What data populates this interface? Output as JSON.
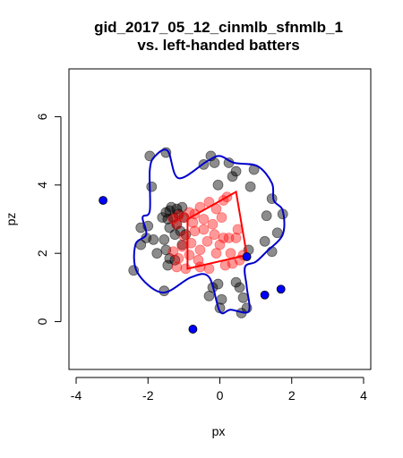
{
  "chart_data": {
    "type": "scatter",
    "title": "gid_2017_05_12_cinmlb_sfnmlb_1",
    "subtitle": "vs. left-handed batters",
    "xlabel": "px",
    "ylabel": "pz",
    "xlim": [
      -4.2,
      4.2
    ],
    "ylim": [
      -1.4,
      7.4
    ],
    "x_ticks": [
      -4,
      -2,
      0,
      2,
      4
    ],
    "y_ticks": [
      0,
      2,
      4,
      6
    ],
    "grid": false,
    "legend": "none",
    "colors": {
      "black": "#000000",
      "red": "#ff0000",
      "blue": "#0000ff",
      "outline": "#0000cc"
    },
    "points_black": [
      [
        -1.95,
        4.85
      ],
      [
        -1.5,
        4.95
      ],
      [
        -1.9,
        3.95
      ],
      [
        -2.2,
        2.75
      ],
      [
        -2.0,
        2.8
      ],
      [
        -2.05,
        2.45
      ],
      [
        -2.2,
        2.25
      ],
      [
        -1.85,
        2.4
      ],
      [
        -1.75,
        2.0
      ],
      [
        -1.55,
        2.4
      ],
      [
        -1.5,
        2.1
      ],
      [
        -1.45,
        1.65
      ],
      [
        -1.4,
        1.85
      ],
      [
        -1.25,
        1.8
      ],
      [
        -1.6,
        3.05
      ],
      [
        -1.45,
        3.0
      ],
      [
        -1.5,
        3.2
      ],
      [
        -1.4,
        3.25
      ],
      [
        -1.35,
        3.35
      ],
      [
        -1.2,
        3.3
      ],
      [
        -1.15,
        3.15
      ],
      [
        -1.05,
        3.35
      ],
      [
        -1.3,
        3.05
      ],
      [
        -1.2,
        2.85
      ],
      [
        -1.0,
        3.05
      ],
      [
        -1.1,
        2.65
      ],
      [
        -1.05,
        2.25
      ],
      [
        -1.25,
        2.55
      ],
      [
        -1.4,
        2.75
      ],
      [
        -0.95,
        2.55
      ],
      [
        -2.4,
        1.5
      ],
      [
        -1.55,
        0.9
      ],
      [
        -0.45,
        4.6
      ],
      [
        -0.25,
        4.85
      ],
      [
        -0.15,
        4.65
      ],
      [
        0.25,
        4.65
      ],
      [
        0.45,
        4.4
      ],
      [
        0.35,
        4.25
      ],
      [
        0.95,
        4.45
      ],
      [
        0.85,
        3.95
      ],
      [
        1.45,
        3.6
      ],
      [
        1.3,
        3.1
      ],
      [
        1.75,
        3.15
      ],
      [
        1.6,
        2.6
      ],
      [
        1.25,
        2.35
      ],
      [
        1.45,
        2.05
      ],
      [
        0.8,
        2.1
      ],
      [
        -0.05,
        4.0
      ],
      [
        -0.3,
        0.75
      ],
      [
        -0.2,
        1.0
      ],
      [
        -0.05,
        1.1
      ],
      [
        0.05,
        0.65
      ],
      [
        0.0,
        0.4
      ],
      [
        0.45,
        1.15
      ],
      [
        0.55,
        1.0
      ],
      [
        0.65,
        0.7
      ],
      [
        0.75,
        0.4
      ],
      [
        0.6,
        0.25
      ]
    ],
    "points_red": [
      [
        -1.3,
        3.0
      ],
      [
        -1.15,
        3.1
      ],
      [
        -1.0,
        3.05
      ],
      [
        -0.85,
        3.2
      ],
      [
        -0.55,
        3.35
      ],
      [
        -0.3,
        3.5
      ],
      [
        -0.1,
        3.3
      ],
      [
        0.1,
        3.55
      ],
      [
        0.2,
        3.65
      ],
      [
        -1.2,
        2.85
      ],
      [
        -0.75,
        2.9
      ],
      [
        -0.45,
        3.0
      ],
      [
        -0.2,
        2.85
      ],
      [
        0.05,
        3.05
      ],
      [
        -1.0,
        2.5
      ],
      [
        -0.7,
        2.65
      ],
      [
        -0.45,
        2.7
      ],
      [
        -0.15,
        2.55
      ],
      [
        0.25,
        2.45
      ],
      [
        0.45,
        2.45
      ],
      [
        0.5,
        2.7
      ],
      [
        -1.05,
        2.2
      ],
      [
        -0.8,
        2.3
      ],
      [
        -0.55,
        2.1
      ],
      [
        -0.35,
        2.35
      ],
      [
        0.0,
        2.25
      ],
      [
        0.3,
        2.0
      ],
      [
        -1.15,
        1.85
      ],
      [
        -0.85,
        1.95
      ],
      [
        -0.6,
        1.8
      ],
      [
        -0.3,
        1.55
      ],
      [
        0.15,
        1.65
      ],
      [
        0.35,
        1.7
      ],
      [
        0.65,
        1.95
      ],
      [
        -1.2,
        1.6
      ],
      [
        -0.95,
        1.55
      ],
      [
        -0.55,
        1.6
      ],
      [
        -0.1,
        2.0
      ],
      [
        0.55,
        1.8
      ],
      [
        -1.3,
        2.05
      ],
      [
        0.1,
        2.45
      ],
      [
        -0.7,
        3.15
      ]
    ],
    "points_blue": [
      [
        -3.25,
        3.55
      ],
      [
        0.75,
        1.9
      ],
      [
        1.25,
        0.78
      ],
      [
        1.7,
        0.95
      ],
      [
        -0.75,
        -0.22
      ]
    ],
    "red_zone": [
      [
        -0.9,
        3.0
      ],
      [
        0.45,
        3.8
      ],
      [
        0.75,
        1.95
      ],
      [
        -0.9,
        1.55
      ]
    ],
    "blue_outline": [
      [
        -1.45,
        5.0
      ],
      [
        -1.15,
        4.2
      ],
      [
        -0.35,
        4.7
      ],
      [
        0.0,
        4.85
      ],
      [
        0.4,
        4.65
      ],
      [
        1.05,
        4.55
      ],
      [
        1.45,
        4.05
      ],
      [
        1.5,
        3.55
      ],
      [
        1.75,
        3.25
      ],
      [
        1.75,
        2.55
      ],
      [
        1.3,
        2.05
      ],
      [
        1.0,
        1.75
      ],
      [
        0.7,
        1.6
      ],
      [
        0.75,
        1.0
      ],
      [
        0.8,
        0.3
      ],
      [
        0.3,
        0.35
      ],
      [
        0.0,
        0.3
      ],
      [
        -0.3,
        1.3
      ],
      [
        -0.8,
        1.3
      ],
      [
        -1.6,
        0.85
      ],
      [
        -2.3,
        1.45
      ],
      [
        -2.35,
        2.25
      ],
      [
        -2.05,
        2.55
      ],
      [
        -2.15,
        3.05
      ],
      [
        -1.95,
        3.25
      ],
      [
        -1.95,
        4.45
      ],
      [
        -1.8,
        4.85
      ]
    ]
  }
}
